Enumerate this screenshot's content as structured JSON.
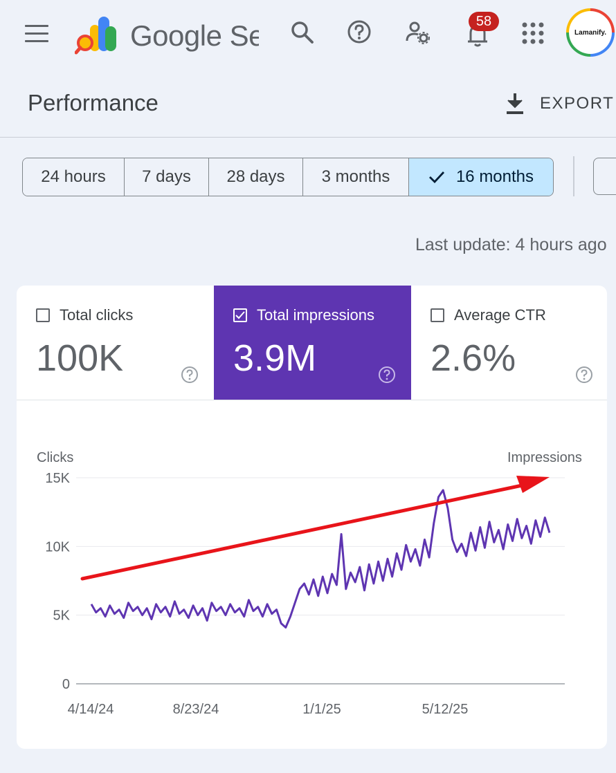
{
  "header": {
    "product_name": "Google Search Console",
    "notifications_count": "58",
    "avatar_text": "Lamanify."
  },
  "title_bar": {
    "title": "Performance",
    "export_label": "EXPORT"
  },
  "date_filters": [
    {
      "label": "24 hours",
      "selected": false
    },
    {
      "label": "7 days",
      "selected": false
    },
    {
      "label": "28 days",
      "selected": false
    },
    {
      "label": "3 months",
      "selected": false
    },
    {
      "label": "16 months",
      "selected": true
    }
  ],
  "last_update": "Last update: 4 hours ago",
  "metrics": [
    {
      "label": "Total clicks",
      "value": "100K",
      "selected": false
    },
    {
      "label": "Total impressions",
      "value": "3.9M",
      "selected": true
    },
    {
      "label": "Average CTR",
      "value": "2.6%",
      "selected": false
    }
  ],
  "colors": {
    "accent": "#5e35b1",
    "selected_chip": "#c2e7ff",
    "trend_arrow": "#e8141a",
    "line": "#5e35b1"
  },
  "chart_data": {
    "type": "line",
    "ylabel_left": "Clicks",
    "ylabel_right": "Impressions",
    "y_ticks": [
      "15K",
      "10K",
      "5K",
      "0"
    ],
    "ylim": [
      0,
      15000
    ],
    "x_ticks": [
      "4/14/24",
      "8/23/24",
      "1/1/25",
      "5/12/25"
    ],
    "series": [
      {
        "values": [
          5800,
          5200,
          5500,
          4900,
          5700,
          5100,
          5400,
          4800,
          5900,
          5300,
          5600,
          5000,
          5500,
          4700,
          5800,
          5200,
          5600,
          4900,
          6000,
          5100,
          5400,
          4800,
          5700,
          5000,
          5500,
          4600,
          5900,
          5300,
          5600,
          5000,
          5800,
          5200,
          5500,
          4900,
          6100,
          5300,
          5600,
          4900,
          5800,
          5100,
          5400,
          4400,
          4100,
          4900,
          5900,
          6900,
          7300,
          6500,
          7600,
          6400,
          7800,
          6600,
          8000,
          7200,
          10900,
          6900,
          8100,
          7400,
          8500,
          6800,
          8700,
          7300,
          8900,
          7500,
          9100,
          7800,
          9500,
          8300,
          10100,
          8900,
          9800,
          8600,
          10500,
          9200,
          11700,
          13600,
          14100,
          12800,
          10500,
          9600,
          10200,
          9300,
          11000,
          9700,
          11400,
          9900,
          11800,
          10300,
          11200,
          9800,
          11600,
          10400,
          12000,
          10600,
          11500,
          10200,
          11900,
          10700,
          12100,
          11000
        ]
      }
    ],
    "annotation": "trend-arrow"
  }
}
